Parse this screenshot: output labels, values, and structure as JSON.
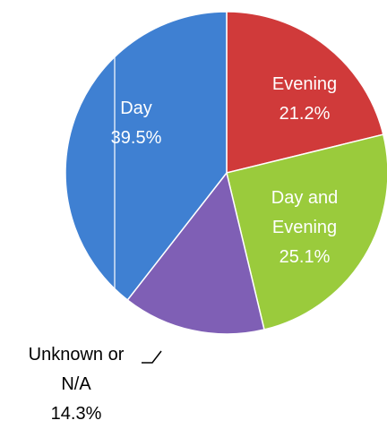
{
  "chart_data": {
    "type": "pie",
    "categories": [
      "Evening",
      "Day and Evening",
      "Unknown or N/A",
      "Day"
    ],
    "values": [
      21.2,
      25.1,
      14.3,
      39.5
    ],
    "value_labels": [
      "21.2%",
      "25.1%",
      "14.3%",
      "39.5%"
    ],
    "colors": [
      "#d03a3a",
      "#9acb3c",
      "#7f5fb5",
      "#3f80d2"
    ]
  }
}
